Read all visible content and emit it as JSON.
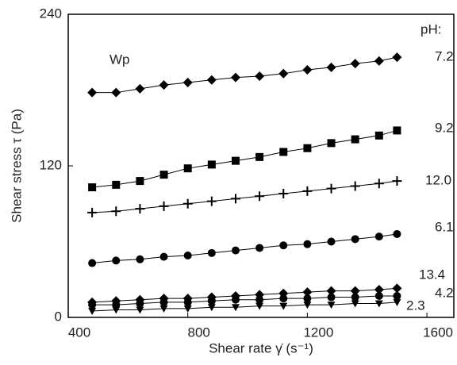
{
  "chart_data": {
    "type": "scatter",
    "xlabel": "Shear rate γ̇ (s⁻¹)",
    "ylabel": "Shear stress τ (Pa)",
    "annotations": [
      "Wp",
      "pH:"
    ],
    "x": [
      480,
      560,
      640,
      720,
      800,
      880,
      960,
      1040,
      1120,
      1200,
      1280,
      1360,
      1440,
      1500
    ],
    "xlim": [
      400,
      1690
    ],
    "xticks": [
      400,
      800,
      1200,
      1600
    ],
    "ylim": [
      0,
      240
    ],
    "yticks": [
      0,
      120,
      240
    ],
    "series": [
      {
        "name": "7.2",
        "color": "#000000",
        "marker": "diamond",
        "values": [
          178,
          178,
          181,
          184,
          186,
          188,
          190,
          191,
          193,
          196,
          198,
          201,
          203,
          206
        ]
      },
      {
        "name": "9.2",
        "color": "#000000",
        "marker": "square",
        "values": [
          103,
          105,
          108,
          113,
          118,
          121,
          124,
          127,
          131,
          134,
          138,
          141,
          144,
          148
        ]
      },
      {
        "name": "12.0",
        "color": "#000000",
        "marker": "plus",
        "values": [
          83,
          84,
          86,
          88,
          90,
          92,
          94,
          96,
          98,
          100,
          102,
          104,
          106,
          108
        ]
      },
      {
        "name": "6.1",
        "color": "#000000",
        "marker": "circle",
        "values": [
          43,
          45,
          46,
          48,
          49,
          51,
          53,
          55,
          57,
          58,
          60,
          62,
          64,
          66
        ]
      },
      {
        "name": "13.4",
        "color": "#000000",
        "marker": "diamond",
        "values": [
          12,
          13,
          14,
          15,
          15,
          16,
          17,
          18,
          19,
          20,
          21,
          21,
          22,
          23
        ]
      },
      {
        "name": "4.2",
        "color": "#000000",
        "marker": "circle",
        "values": [
          10,
          10,
          11,
          12,
          12,
          13,
          14,
          14,
          15,
          15,
          16,
          16,
          17,
          17
        ]
      },
      {
        "name": "2.3",
        "color": "#000000",
        "marker": "triangle-down",
        "values": [
          5,
          6,
          6,
          7,
          7,
          8,
          8,
          9,
          9,
          10,
          10,
          11,
          11,
          12
        ]
      }
    ]
  }
}
